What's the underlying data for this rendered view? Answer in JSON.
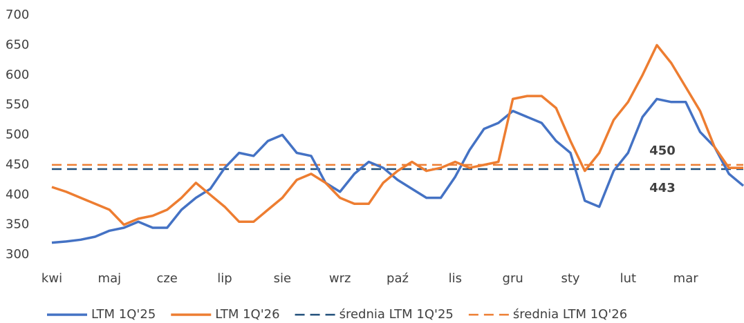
{
  "chart_data": {
    "type": "line",
    "categories": [
      "kwi",
      null,
      null,
      null,
      "maj",
      null,
      null,
      null,
      "cze",
      null,
      null,
      null,
      "lip",
      null,
      null,
      null,
      "sie",
      null,
      null,
      null,
      "wrz",
      null,
      null,
      null,
      "paź",
      null,
      null,
      null,
      "lis",
      null,
      null,
      null,
      "gru",
      null,
      null,
      null,
      "sty",
      null,
      null,
      null,
      "lut",
      null,
      null,
      null,
      "mar",
      null,
      null,
      null,
      null
    ],
    "series": [
      {
        "name": "LTM 1Q'25",
        "color": "#4472c4",
        "values": [
          320,
          322,
          325,
          330,
          340,
          345,
          355,
          345,
          345,
          375,
          395,
          410,
          445,
          470,
          465,
          490,
          500,
          470,
          465,
          420,
          405,
          435,
          455,
          445,
          425,
          410,
          395,
          395,
          430,
          475,
          510,
          520,
          540,
          530,
          520,
          490,
          470,
          390,
          380,
          440,
          470,
          530,
          560,
          555,
          555,
          505,
          480,
          435,
          415
        ]
      },
      {
        "name": "LTM 1Q'26",
        "color": "#ed7d31",
        "values": [
          413,
          405,
          395,
          385,
          375,
          350,
          360,
          365,
          375,
          395,
          420,
          400,
          380,
          355,
          355,
          375,
          395,
          425,
          435,
          420,
          395,
          385,
          385,
          420,
          440,
          455,
          440,
          445,
          455,
          445,
          450,
          455,
          560,
          565,
          565,
          545,
          490,
          440,
          470,
          525,
          555,
          600,
          650,
          620,
          580,
          540,
          480,
          445,
          445
        ]
      }
    ],
    "hlines": [
      {
        "name": "średnia LTM 1Q'25",
        "value": 443,
        "color": "#1f4e79",
        "style": "dashed"
      },
      {
        "name": "średnia LTM 1Q'26",
        "value": 450,
        "color": "#ed7d31",
        "style": "dashed"
      }
    ],
    "ylim": [
      300,
      700
    ],
    "yticks": [
      300,
      350,
      400,
      450,
      500,
      550,
      600,
      650,
      700
    ],
    "grid": false,
    "legend": "bottom"
  }
}
